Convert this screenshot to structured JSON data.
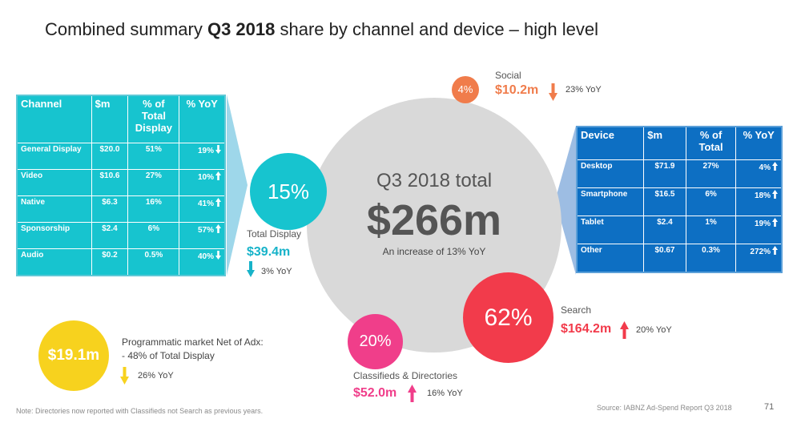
{
  "title": {
    "prefix": "Combined summary ",
    "bold": "Q3 2018",
    "suffix": " share by channel and device – high level"
  },
  "channel_table": {
    "headers": [
      "Channel",
      "$m",
      "% of Total Display",
      "% YoY"
    ],
    "rows": [
      {
        "channel": "General Display",
        "value": "$20.0",
        "share": "51%",
        "yoy": "19%",
        "direction": "down"
      },
      {
        "channel": "Video",
        "value": "$10.6",
        "share": "27%",
        "yoy": "10%",
        "direction": "up"
      },
      {
        "channel": "Native",
        "value": "$6.3",
        "share": "16%",
        "yoy": "41%",
        "direction": "up"
      },
      {
        "channel": "Sponsorship",
        "value": "$2.4",
        "share": "6%",
        "yoy": "57%",
        "direction": "up"
      },
      {
        "channel": "Audio",
        "value": "$0.2",
        "share": "0.5%",
        "yoy": "40%",
        "direction": "down"
      }
    ]
  },
  "device_table": {
    "headers": [
      "Device",
      "$m",
      "% of Total",
      "% YoY"
    ],
    "rows": [
      {
        "device": "Desktop",
        "value": "$71.9",
        "share": "27%",
        "yoy": "4%",
        "direction": "up"
      },
      {
        "device": "Smartphone",
        "value": "$16.5",
        "share": "6%",
        "yoy": "18%",
        "direction": "up"
      },
      {
        "device": "Tablet",
        "value": "$2.4",
        "share": "1%",
        "yoy": "19%",
        "direction": "up"
      },
      {
        "device": "Other",
        "value": "$0.67",
        "share": "0.3%",
        "yoy": "272%",
        "direction": "up"
      }
    ]
  },
  "total": {
    "label": "Q3 2018 total",
    "value": "$266m",
    "note": "An increase of 13% YoY"
  },
  "display": {
    "pct": "15%",
    "label": "Total Display",
    "value": "$39.4m",
    "yoy": "3% YoY",
    "direction": "down",
    "color": "#17c4cf"
  },
  "social": {
    "pct": "4%",
    "label": "Social",
    "value": "$10.2m",
    "yoy": "23% YoY",
    "direction": "down",
    "color": "#f07c4b"
  },
  "search": {
    "pct": "62%",
    "label": "Search",
    "value": "$164.2m",
    "yoy": "20% YoY",
    "direction": "up",
    "color": "#f23b4b"
  },
  "classifieds": {
    "pct": "20%",
    "label": "Classifieds & Directories",
    "value": "$52.0m",
    "yoy": "16% YoY",
    "direction": "up",
    "color": "#f03e8a"
  },
  "programmatic": {
    "value": "$19.1m",
    "line1": "Programmatic market Net of Adx:",
    "line2": "- 48% of Total Display",
    "yoy": "26% YoY",
    "direction": "down",
    "color": "#f7d21e"
  },
  "footer": {
    "note": "Note: Directories now reported with Classifieds not Search as previous years.",
    "source": "Source: IABNZ Ad-Spend Report Q3 2018",
    "page": "71"
  },
  "colors": {
    "channel_table": "#17c4cf",
    "device_table": "#0d6fc3",
    "total_circle": "#d9d9d9"
  }
}
